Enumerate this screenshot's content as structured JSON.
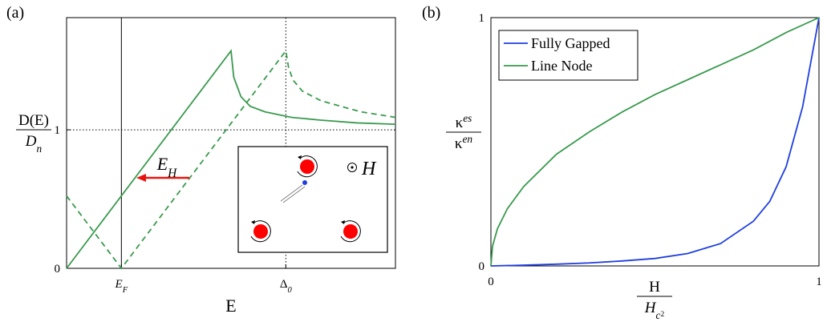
{
  "chart_data": [
    {
      "type": "line",
      "panel_label": "(a)",
      "xlabel": "E",
      "ylabel": {
        "numerator": "D(E)",
        "denominator": {
          "base": "D",
          "sub": "n"
        }
      },
      "xlim": [
        0,
        6
      ],
      "ylim": [
        0,
        1.81
      ],
      "xticks": [
        {
          "value": 1,
          "label": {
            "base": "E",
            "sub": "F"
          }
        },
        {
          "value": 4,
          "label": {
            "base": "Δ",
            "sub": "0"
          }
        }
      ],
      "yticks": [
        0,
        1
      ],
      "reference_lines": [
        {
          "axis": "x",
          "value": 1,
          "style": "solid"
        },
        {
          "axis": "x",
          "value": 4,
          "style": "dotted"
        },
        {
          "axis": "y",
          "value": 1,
          "style": "dotted"
        }
      ],
      "series": [
        {
          "color": "#3a9a4e",
          "dashed": false,
          "x": [
            0,
            3,
            3.05,
            3.18,
            3.35,
            3.62,
            4.1,
            4.64,
            5.3,
            6
          ],
          "values": [
            0,
            1.57,
            1.38,
            1.24,
            1.17,
            1.13,
            1.09,
            1.07,
            1.05,
            1.04
          ]
        },
        {
          "color": "#3a9a4e",
          "dashed": true,
          "x": [
            0,
            1,
            4,
            4.05,
            4.13,
            4.3,
            4.64,
            5.0,
            5.37,
            6
          ],
          "values": [
            0.523,
            0,
            1.57,
            1.45,
            1.36,
            1.28,
            1.21,
            1.17,
            1.13,
            1.09
          ]
        }
      ],
      "annotation": {
        "base": "E",
        "sub": "H",
        "color": "#e8140f"
      },
      "inset_label": "H"
    },
    {
      "type": "line",
      "panel_label": "(b)",
      "xlabel": {
        "numerator": "H",
        "denominator": {
          "base": "H",
          "sub": "c",
          "subsub": "2"
        }
      },
      "ylabel": {
        "numerator": {
          "base": "κ",
          "sup": "es"
        },
        "denominator": {
          "base": "κ",
          "sup": "en"
        }
      },
      "xlim": [
        0,
        1
      ],
      "ylim": [
        0,
        1
      ],
      "xticks": [
        0,
        1
      ],
      "yticks": [
        0,
        1
      ],
      "legend": "upper left",
      "series": [
        {
          "name": "Fully Gapped",
          "color": "#1f3fe0",
          "x": [
            0,
            0.1,
            0.2,
            0.3,
            0.4,
            0.5,
            0.6,
            0.7,
            0.8,
            0.85,
            0.9,
            0.95,
            1
          ],
          "values": [
            0,
            0.003,
            0.007,
            0.012,
            0.02,
            0.03,
            0.05,
            0.09,
            0.18,
            0.26,
            0.4,
            0.64,
            1
          ]
        },
        {
          "name": "Line Node",
          "color": "#3a9a4e",
          "x": [
            0,
            0.005,
            0.02,
            0.05,
            0.1,
            0.2,
            0.3,
            0.4,
            0.5,
            0.6,
            0.7,
            0.8,
            0.9,
            1
          ],
          "values": [
            0,
            0.08,
            0.15,
            0.23,
            0.32,
            0.45,
            0.54,
            0.62,
            0.69,
            0.75,
            0.81,
            0.87,
            0.94,
            1
          ]
        }
      ]
    }
  ]
}
